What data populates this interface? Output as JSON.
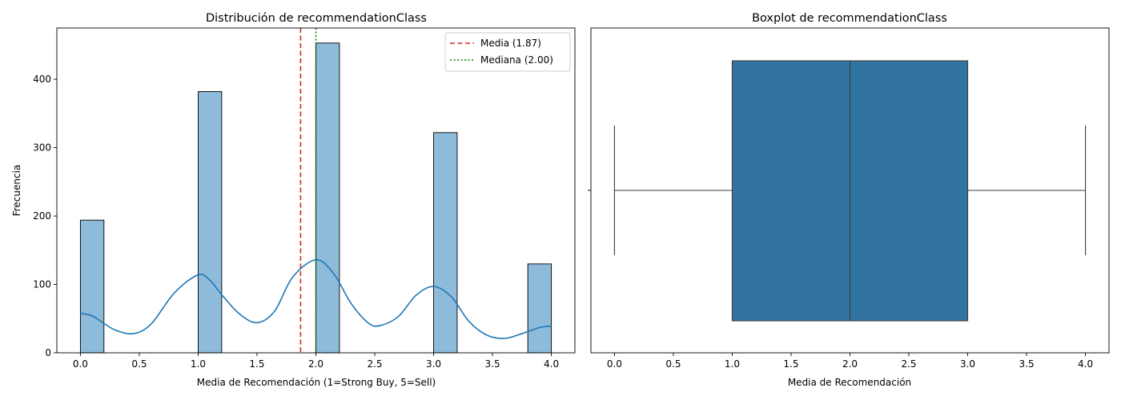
{
  "chart_data": [
    {
      "type": "histogram",
      "title": "Distribución de recommendationClass",
      "xlabel": "Media de Recomendación (1=Strong Buy, 5=Sell)",
      "ylabel": "Frecuencia",
      "xlim": [
        -0.2,
        4.2
      ],
      "ylim": [
        0,
        475
      ],
      "xticks": [
        "0.0",
        "0.5",
        "1.0",
        "1.5",
        "2.0",
        "2.5",
        "3.0",
        "3.5",
        "4.0"
      ],
      "yticks": [
        "0",
        "100",
        "200",
        "300",
        "400"
      ],
      "bins": [
        {
          "x0": 0.0,
          "x1": 0.2,
          "count": 194
        },
        {
          "x0": 1.0,
          "x1": 1.2,
          "count": 382
        },
        {
          "x0": 2.0,
          "x1": 2.2,
          "count": 453
        },
        {
          "x0": 3.0,
          "x1": 3.2,
          "count": 322
        },
        {
          "x0": 3.8,
          "x1": 4.0,
          "count": 130
        }
      ],
      "kde": {
        "x": [
          0.0,
          0.1,
          0.2,
          0.3,
          0.45,
          0.6,
          0.8,
          1.0,
          1.1,
          1.2,
          1.35,
          1.5,
          1.65,
          1.8,
          2.0,
          2.15,
          2.3,
          2.45,
          2.55,
          2.7,
          2.85,
          3.0,
          3.15,
          3.3,
          3.45,
          3.6,
          3.75,
          3.9,
          4.0
        ],
        "y": [
          58,
          54,
          43,
          33,
          28,
          42,
          88,
          114,
          106,
          85,
          57,
          44,
          61,
          110,
          136,
          116,
          72,
          43,
          40,
          53,
          84,
          97,
          82,
          46,
          26,
          21,
          28,
          37,
          39
        ]
      },
      "mean_line": {
        "value": 1.87,
        "label": "Media (1.87)",
        "color": "#d62728"
      },
      "median_line": {
        "value": 2.0,
        "label": "Mediana (2.00)",
        "color": "#008000"
      },
      "bar_color": "#8fbbdb",
      "kde_color": "#1f77b4",
      "legend": "top-right"
    },
    {
      "type": "boxplot",
      "title": "Boxplot de recommendationClass",
      "xlabel": "Media de Recomendación",
      "xlim": [
        -0.2,
        4.2
      ],
      "xticks": [
        "0.0",
        "0.5",
        "1.0",
        "1.5",
        "2.0",
        "2.5",
        "3.0",
        "3.5",
        "4.0"
      ],
      "stats": {
        "min": 0.0,
        "q1": 1.0,
        "median": 2.0,
        "q3": 3.0,
        "max": 4.0
      },
      "box_color": "#3274a1"
    }
  ]
}
